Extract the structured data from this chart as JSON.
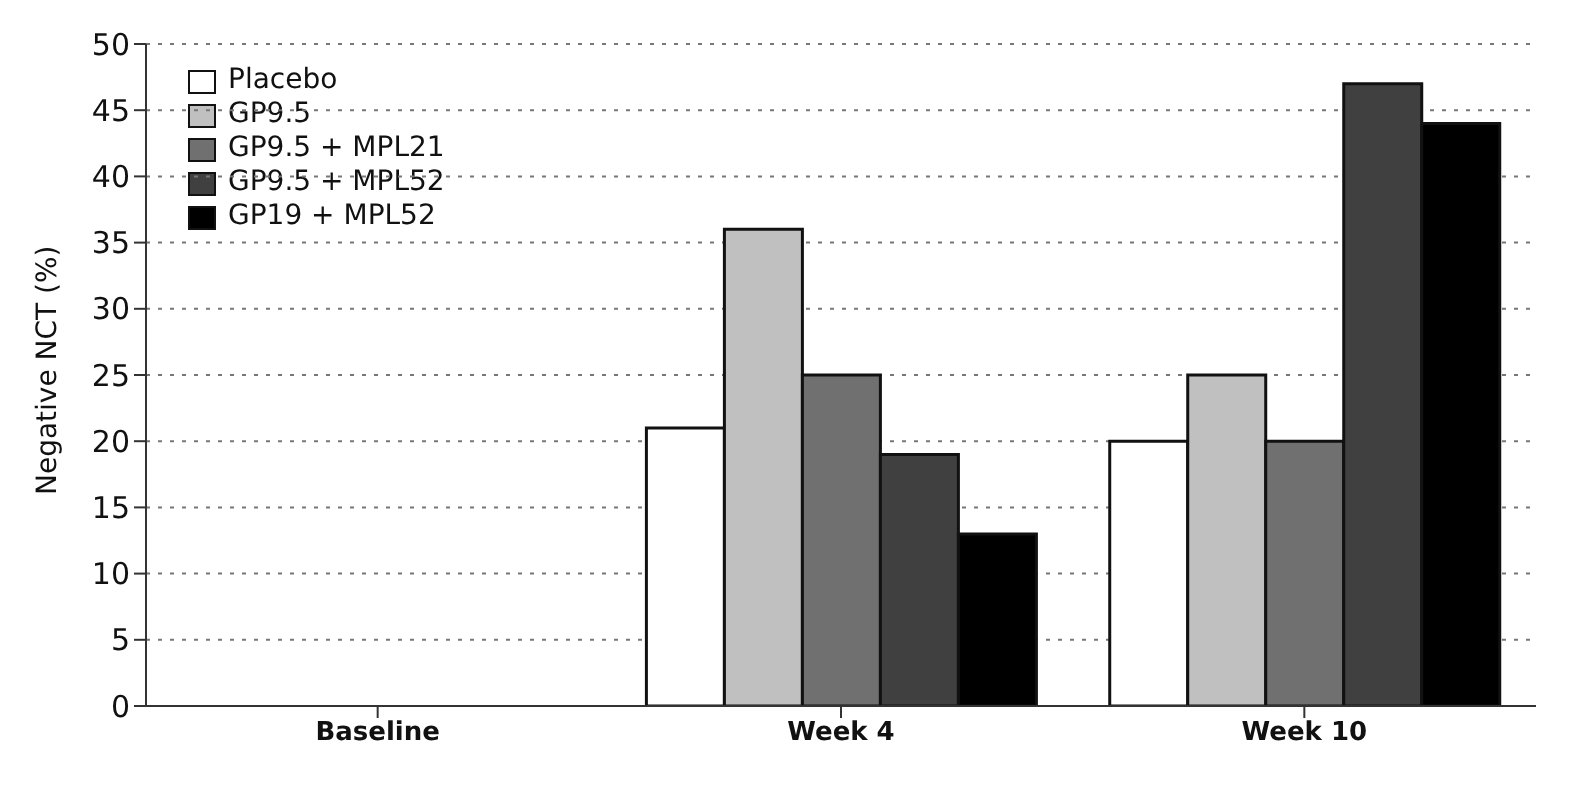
{
  "chart_data": {
    "type": "bar",
    "ylabel": "Negative NCT (%)",
    "categories": [
      "Baseline",
      "Week 4",
      "Week 10"
    ],
    "series": [
      {
        "name": "Placebo",
        "color": "#ffffff",
        "values": [
          null,
          21,
          20
        ]
      },
      {
        "name": "GP9.5",
        "color": "#c0c0c0",
        "values": [
          null,
          36,
          25
        ]
      },
      {
        "name": "GP9.5 + MPL21",
        "color": "#707070",
        "values": [
          null,
          25,
          20
        ]
      },
      {
        "name": "GP9.5 + MPL52",
        "color": "#404040",
        "values": [
          null,
          19,
          47
        ]
      },
      {
        "name": "GP19 + MPL52",
        "color": "#000000",
        "values": [
          null,
          13,
          44
        ]
      }
    ],
    "ylim": [
      0,
      50
    ],
    "yticks": [
      0,
      5,
      10,
      15,
      20,
      25,
      30,
      35,
      40,
      45,
      50
    ],
    "grid": "y",
    "legend": "top left"
  }
}
